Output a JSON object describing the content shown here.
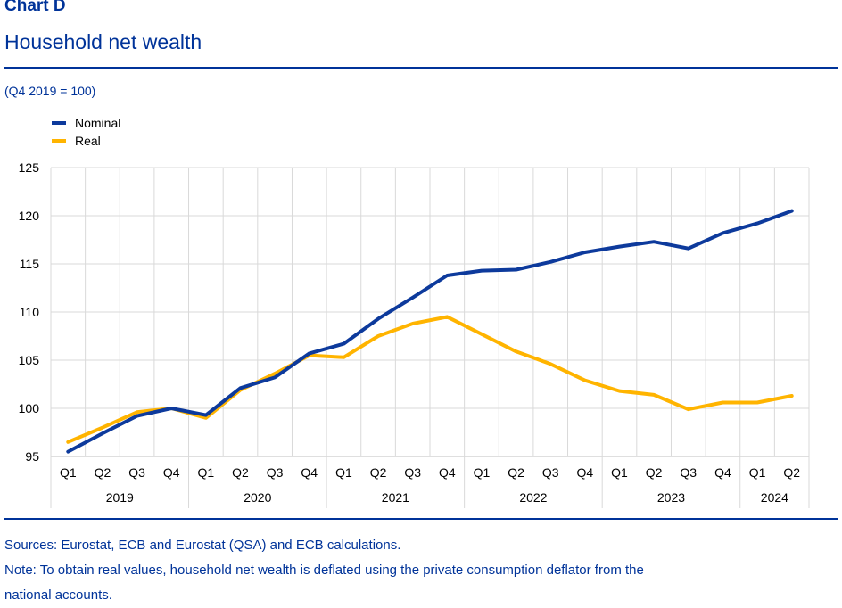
{
  "header": {
    "label": "Chart D",
    "title": "Household net wealth",
    "unit": "(Q4 2019 = 100)"
  },
  "chart_data": {
    "type": "line",
    "x": [
      "Q1",
      "Q2",
      "Q3",
      "Q4",
      "Q1",
      "Q2",
      "Q3",
      "Q4",
      "Q1",
      "Q2",
      "Q3",
      "Q4",
      "Q1",
      "Q2",
      "Q3",
      "Q4",
      "Q1",
      "Q2",
      "Q3",
      "Q4",
      "Q1",
      "Q2"
    ],
    "years": [
      {
        "label": "2019",
        "quarters": 4
      },
      {
        "label": "2020",
        "quarters": 4
      },
      {
        "label": "2021",
        "quarters": 4
      },
      {
        "label": "2022",
        "quarters": 4
      },
      {
        "label": "2023",
        "quarters": 4
      },
      {
        "label": "2024",
        "quarters": 2
      }
    ],
    "ylim": [
      95,
      125
    ],
    "yticks": [
      95,
      100,
      105,
      110,
      115,
      120,
      125
    ],
    "grid": true,
    "legend_position": "top-left",
    "series": [
      {
        "name": "Nominal",
        "color": "#0d3a9c",
        "values": [
          95.5,
          97.4,
          99.2,
          100.0,
          99.3,
          102.1,
          103.2,
          105.7,
          106.7,
          109.3,
          111.5,
          113.8,
          114.3,
          114.4,
          115.2,
          116.2,
          116.8,
          117.3,
          116.6,
          118.2,
          119.2,
          120.5
        ]
      },
      {
        "name": "Real",
        "color": "#ffb400",
        "values": [
          96.5,
          98.0,
          99.6,
          100.0,
          99.0,
          101.9,
          103.6,
          105.5,
          105.3,
          107.5,
          108.8,
          109.5,
          107.7,
          105.9,
          104.6,
          102.9,
          101.8,
          101.4,
          99.9,
          100.6,
          100.6,
          101.3
        ]
      }
    ]
  },
  "footer": {
    "sources": "Sources: Eurostat, ECB and Eurostat (QSA) and ECB calculations.",
    "note_line1": "Note: To obtain real values, household net wealth is deflated using the private consumption deflator from the",
    "note_line2": "national accounts."
  }
}
